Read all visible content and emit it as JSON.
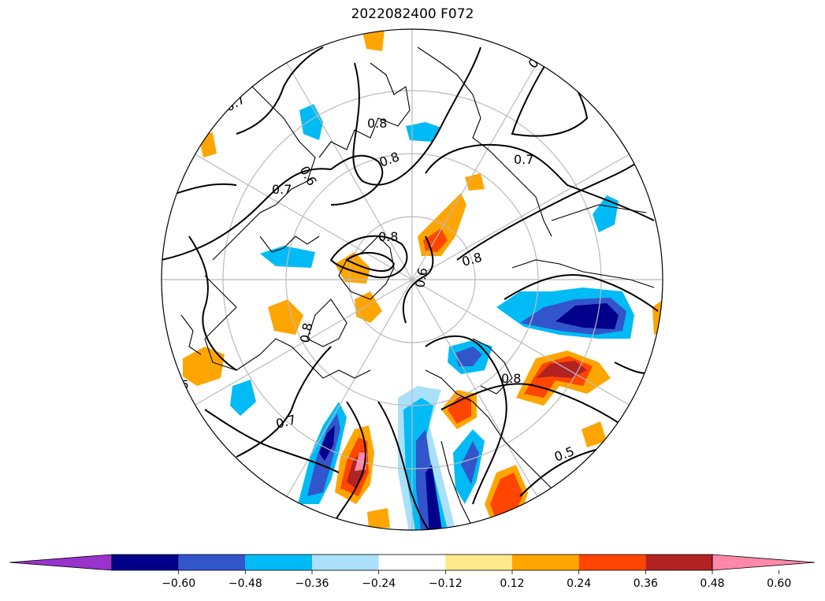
{
  "title": "2022082400 F072",
  "map": {
    "projection": "north-polar-stereographic",
    "graticule_color": "#bbbbbb",
    "contour_color": "#000000",
    "coastline_color": "#000000",
    "contour_labels": [
      "0.6",
      "0.7",
      "0.8",
      "0.5",
      "0.6",
      "0.7",
      "0.8",
      "0.8",
      "0.8",
      "0.7",
      "0.8",
      "0.6",
      "0.5",
      "0.8",
      "0.7",
      "0.6"
    ]
  },
  "colorbar": {
    "extend": "both",
    "ticks": [
      "−0.60",
      "−0.48",
      "−0.36",
      "−0.24",
      "−0.12",
      "0.12",
      "0.24",
      "0.36",
      "0.48",
      "0.60"
    ],
    "bins": [
      {
        "color": "#9933cc",
        "range": "< -0.60"
      },
      {
        "color": "#00008b",
        "range": "-0.60 to -0.48"
      },
      {
        "color": "#3355cc",
        "range": "-0.48 to -0.36"
      },
      {
        "color": "#00bbf5",
        "range": "-0.36 to -0.24"
      },
      {
        "color": "#aae0fa",
        "range": "-0.24 to -0.12"
      },
      {
        "color": "#ffffff",
        "range": "-0.12 to 0.12"
      },
      {
        "color": "#ffe98a",
        "range": "0.12 to 0.24"
      },
      {
        "color": "#ffa500",
        "range": "0.24 to 0.36"
      },
      {
        "color": "#ff4500",
        "range": "0.36 to 0.48"
      },
      {
        "color": "#b22222",
        "range": "0.48 to 0.60"
      },
      {
        "color": "#ff88aa",
        "range": "> 0.60"
      }
    ]
  }
}
